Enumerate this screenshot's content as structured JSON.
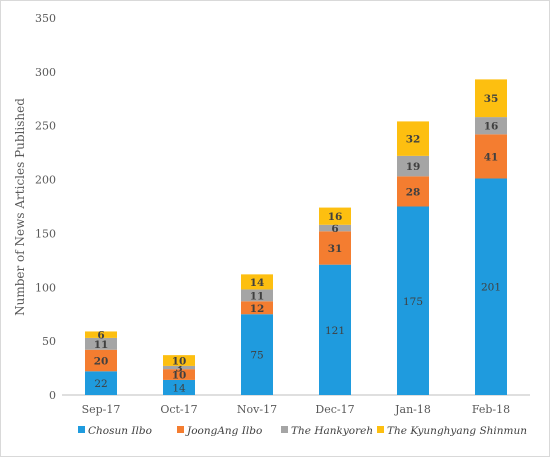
{
  "chart_data": {
    "type": "bar",
    "stacked": true,
    "ylabel": "Number of News Articles Published",
    "xlabel": "",
    "ylim": [
      0,
      350
    ],
    "yticks": [
      0,
      50,
      100,
      150,
      200,
      250,
      300,
      350
    ],
    "grid": false,
    "legend_position": "bottom",
    "categories": [
      "Sep-17",
      "Oct-17",
      "Nov-17",
      "Dec-17",
      "Jan-18",
      "Feb-18"
    ],
    "series": [
      {
        "name": "Chosun Ilbo",
        "color": "#1f9bde",
        "values": [
          22,
          14,
          75,
          121,
          175,
          201
        ]
      },
      {
        "name": "JoongAng Ilbo",
        "color": "#f47d30",
        "values": [
          20,
          10,
          12,
          31,
          28,
          41
        ]
      },
      {
        "name": "The Hankyoreh",
        "color": "#a5a5a5",
        "values": [
          11,
          3,
          11,
          6,
          19,
          16
        ]
      },
      {
        "name": "The Kyunghyang Shinmun",
        "color": "#fdbf10",
        "values": [
          6,
          10,
          14,
          16,
          32,
          35
        ]
      }
    ]
  }
}
